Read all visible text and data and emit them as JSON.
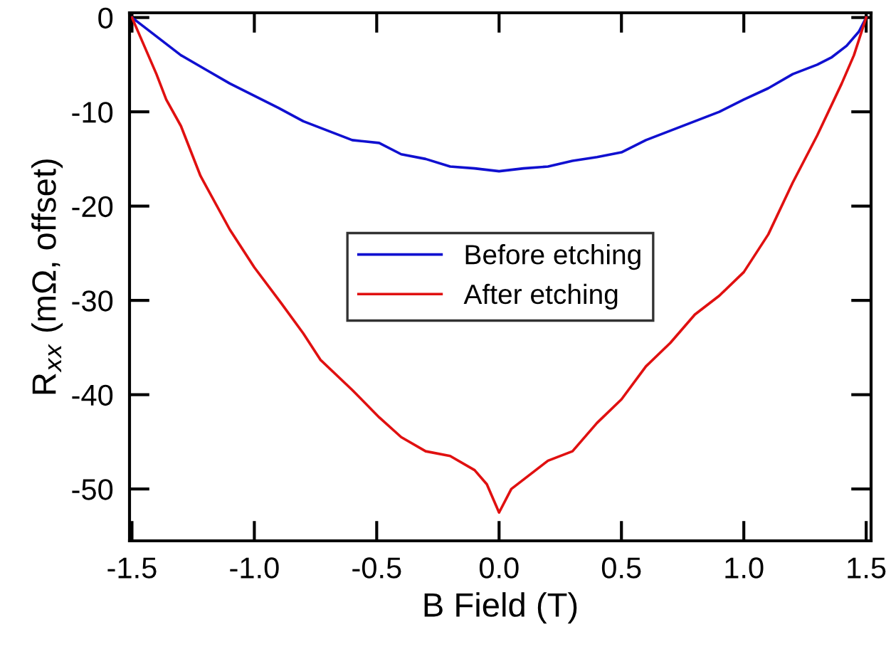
{
  "chart_data": {
    "type": "line",
    "xlabel": "B Field (T)",
    "ylabel": "R$_{xx}$ (mΩ, offset)",
    "xlim": [
      -1.51,
      1.52
    ],
    "ylim": [
      -55.5,
      0.5
    ],
    "xticks": [
      {
        "value": -1.5,
        "label": "-1.5"
      },
      {
        "value": -1.0,
        "label": "-1.0"
      },
      {
        "value": -0.5,
        "label": "-0.5"
      },
      {
        "value": 0.0,
        "label": "0.0"
      },
      {
        "value": 0.5,
        "label": "0.5"
      },
      {
        "value": 1.0,
        "label": "1.0"
      },
      {
        "value": 1.5,
        "label": "1.5"
      }
    ],
    "yticks": [
      0,
      -10,
      -20,
      -30,
      -40,
      -50
    ],
    "grid": false,
    "legend": "center",
    "line_style": "solid",
    "marker": "none",
    "series": [
      {
        "name": "Before etching",
        "color": "#1010d0",
        "x": [
          -1.5,
          -1.45,
          -1.4,
          -1.3,
          -1.2,
          -1.1,
          -1.0,
          -0.9,
          -0.8,
          -0.7,
          -0.6,
          -0.49,
          -0.4,
          -0.3,
          -0.2,
          -0.1,
          0.0,
          0.1,
          0.2,
          0.3,
          0.4,
          0.5,
          0.6,
          0.7,
          0.8,
          0.9,
          1.0,
          1.1,
          1.2,
          1.3,
          1.36,
          1.42,
          1.47,
          1.5
        ],
        "values": [
          0,
          -1,
          -2,
          -4,
          -5.5,
          -7,
          -8.3,
          -9.6,
          -11,
          -12,
          -13,
          -13.3,
          -14.5,
          -15,
          -15.8,
          -16,
          -16.3,
          -16,
          -15.8,
          -15.2,
          -14.8,
          -14.3,
          -13,
          -12,
          -11,
          -10,
          -8.7,
          -7.5,
          -6,
          -5,
          -4.2,
          -3,
          -1.5,
          0
        ]
      },
      {
        "name": "After etching",
        "color": "#e01010",
        "x": [
          -1.5,
          -1.45,
          -1.4,
          -1.36,
          -1.3,
          -1.22,
          -1.1,
          -1.0,
          -0.89,
          -0.8,
          -0.73,
          -0.6,
          -0.49,
          -0.4,
          -0.3,
          -0.2,
          -0.1,
          -0.05,
          0.0,
          0.05,
          0.1,
          0.2,
          0.3,
          0.4,
          0.5,
          0.6,
          0.7,
          0.8,
          0.9,
          1.0,
          1.1,
          1.2,
          1.3,
          1.4,
          1.45,
          1.5
        ],
        "values": [
          0,
          -3,
          -6,
          -8.7,
          -11.5,
          -16.8,
          -22.5,
          -26.5,
          -30.3,
          -33.5,
          -36.3,
          -39.5,
          -42.4,
          -44.5,
          -46,
          -46.5,
          -48,
          -49.5,
          -52.5,
          -50,
          -49,
          -47,
          -46,
          -43,
          -40.5,
          -37,
          -34.5,
          -31.5,
          -29.5,
          -27,
          -23,
          -17.5,
          -12.5,
          -7,
          -4,
          0
        ]
      }
    ]
  }
}
